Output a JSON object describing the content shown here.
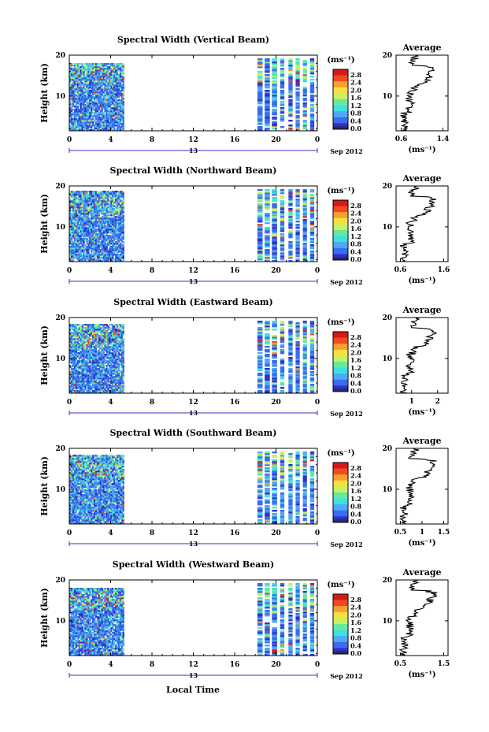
{
  "figure": {
    "x_axis_label": "Local Time",
    "colorbar_levels": [
      "2.8",
      "2.4",
      "2.0",
      "1.6",
      "1.2",
      "0.8",
      "0.4",
      "0.0"
    ],
    "colorbar_unit": "(ms⁻¹)",
    "date_day": "13",
    "date_text": "Sep 2012",
    "ylabel": "Height (km)",
    "avg_title": "Average",
    "avg_unit": "(ms⁻¹)",
    "colors": [
      "#2a2a6e",
      "#3030c8",
      "#3a6cf0",
      "#4fa8f5",
      "#3ee0e0",
      "#66e8a0",
      "#c8f060",
      "#f5e040",
      "#f5a030",
      "#f04a20",
      "#d81818"
    ]
  },
  "chart_data": [
    {
      "type": "heatmap",
      "title": "Spectral Width (Vertical Beam)",
      "xticks": [
        "0",
        "4",
        "8",
        "12",
        "16",
        "20",
        "0"
      ],
      "yticks": [
        "20",
        "10"
      ],
      "xlim": [
        0,
        24
      ],
      "ylim": [
        1.5,
        20
      ],
      "data_segments_hours": [
        [
          0,
          5.3
        ],
        [
          18.2,
          24
        ]
      ],
      "avg_xticks": [
        "0.6",
        "1.4"
      ],
      "avg_xlim": [
        0.5,
        1.5
      ]
    },
    {
      "type": "heatmap",
      "title": "Spectral Width (Northward Beam)",
      "xticks": [
        "0",
        "4",
        "8",
        "12",
        "16",
        "20",
        "0"
      ],
      "yticks": [
        "20",
        "10"
      ],
      "xlim": [
        0,
        24
      ],
      "ylim": [
        1.5,
        20
      ],
      "data_segments_hours": [
        [
          0,
          5.3
        ],
        [
          18.2,
          24
        ]
      ],
      "avg_xticks": [
        "0.6",
        "1.6"
      ],
      "avg_xlim": [
        0.5,
        1.7
      ]
    },
    {
      "type": "heatmap",
      "title": "Spectral Width (Eastward Beam)",
      "xticks": [
        "0",
        "4",
        "8",
        "12",
        "16",
        "20",
        "0"
      ],
      "yticks": [
        "20",
        "10"
      ],
      "xlim": [
        0,
        24
      ],
      "ylim": [
        1.5,
        20
      ],
      "data_segments_hours": [
        [
          0,
          5.3
        ],
        [
          18.2,
          24
        ]
      ],
      "avg_xticks": [
        "1",
        "2"
      ],
      "avg_xlim": [
        0.4,
        2.4
      ]
    },
    {
      "type": "heatmap",
      "title": "Spectral Width (Southward Beam)",
      "xticks": [
        "0",
        "4",
        "8",
        "12",
        "16",
        "20",
        "0"
      ],
      "yticks": [
        "20",
        "10"
      ],
      "xlim": [
        0,
        24
      ],
      "ylim": [
        1.5,
        20
      ],
      "data_segments_hours": [
        [
          0,
          5.3
        ],
        [
          18.2,
          24
        ]
      ],
      "avg_xticks": [
        "0.5",
        "1",
        "1.5"
      ],
      "avg_xlim": [
        0.4,
        1.6
      ]
    },
    {
      "type": "heatmap",
      "title": "Spectral Width (Westward Beam)",
      "xticks": [
        "0",
        "4",
        "8",
        "12",
        "16",
        "20",
        "0"
      ],
      "yticks": [
        "20",
        "10"
      ],
      "xlim": [
        0,
        24
      ],
      "ylim": [
        1.5,
        20
      ],
      "data_segments_hours": [
        [
          0,
          5.3
        ],
        [
          18.2,
          24
        ]
      ],
      "avg_xticks": [
        "0.5",
        "1.5"
      ],
      "avg_xlim": [
        0.4,
        1.6
      ]
    }
  ]
}
